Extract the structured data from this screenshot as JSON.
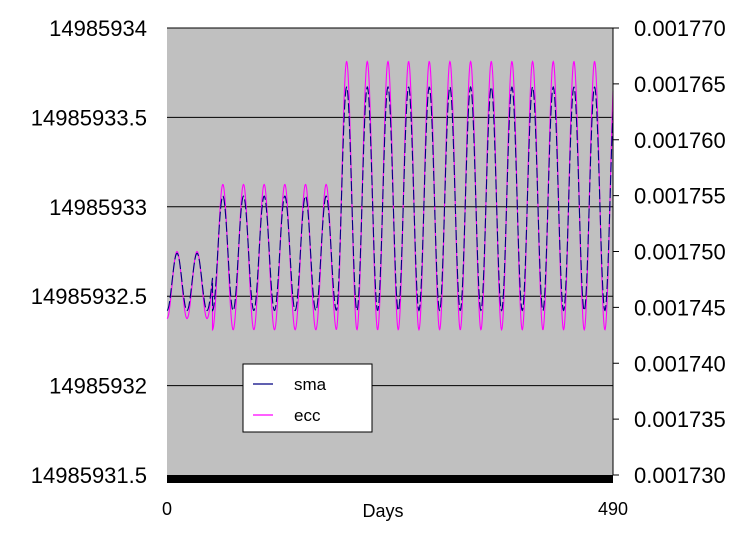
{
  "chart_data": {
    "type": "line",
    "title": "",
    "xlabel": "Days",
    "ylabel_left": "",
    "ylabel_right": "",
    "xlim": [
      0,
      490
    ],
    "x_tick_labels": [
      "0",
      "490"
    ],
    "ylim_left": [
      14985931.5,
      14985934
    ],
    "ylim_right": [
      0.00173,
      0.00177
    ],
    "y_left_tick_labels": [
      "14985934",
      "14985933.5",
      "14985933",
      "14985932.5",
      "14985932",
      "14985931.5"
    ],
    "y_right_tick_labels": [
      "0.001770",
      "0.001765",
      "0.001760",
      "0.001755",
      "0.001750",
      "0.001745",
      "0.001740",
      "0.001735",
      "0.001730"
    ],
    "grid": "horizontal",
    "background_color": "#c0c0c0",
    "legend_position": "lower-middle",
    "series": [
      {
        "name": "sma",
        "axis": "left",
        "color": "#000080",
        "style": "dashed",
        "segments": [
          {
            "x_start": 0,
            "x_end": 50,
            "period": 22,
            "min": 14985932.42,
            "max": 14985932.74
          },
          {
            "x_start": 50,
            "x_end": 186,
            "period": 22.7,
            "min": 14985932.42,
            "max": 14985933.06
          },
          {
            "x_start": 186,
            "x_end": 490,
            "period": 22.7,
            "min": 14985932.42,
            "max": 14985933.67
          }
        ]
      },
      {
        "name": "ecc",
        "axis": "right",
        "color": "#ff00ff",
        "style": "solid",
        "segments": [
          {
            "x_start": 0,
            "x_end": 50,
            "period": 22,
            "min": 0.001744,
            "max": 0.00175
          },
          {
            "x_start": 50,
            "x_end": 186,
            "period": 22.7,
            "min": 0.001743,
            "max": 0.001756
          },
          {
            "x_start": 186,
            "x_end": 490,
            "period": 22.7,
            "min": 0.001743,
            "max": 0.001767
          }
        ]
      }
    ]
  }
}
